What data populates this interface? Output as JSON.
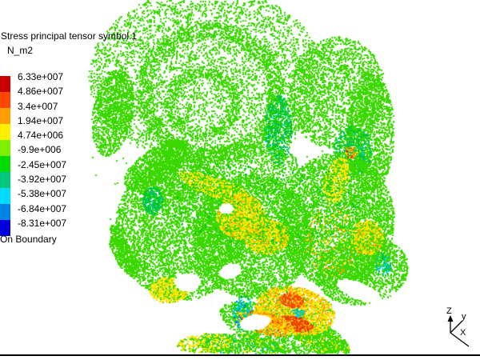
{
  "legend": {
    "title": "Stress principal tensor symbol.1",
    "unit": "N_m2",
    "values": [
      "6.33e+007",
      "4.86e+007",
      "3.4e+007",
      "1.94e+007",
      "4.74e+006",
      "-9.9e+006",
      "-2.45e+007",
      "-3.92e+007",
      "-5.38e+007",
      "-6.84e+007",
      "-8.31e+007"
    ],
    "swatch_colors": [
      "#C80000",
      "#FF4600",
      "#FF9E00",
      "#FFF000",
      "#7DF000",
      "#00DC00",
      "#00C87D",
      "#00DCFF",
      "#0082E6",
      "#0000DC"
    ],
    "boundary_label": "On Boundary"
  },
  "axis_triad": {
    "z": "Z",
    "y": "y",
    "x": "X"
  },
  "viewport": {
    "background": "#FFFFFF",
    "bottom_line_color": "#000000"
  },
  "point_cloud": {
    "seed": 1337,
    "dot_size": 2,
    "palette": {
      "g": "#3BD800",
      "dg": "#00C61E",
      "em": "#00C375",
      "cy": "#00D2FF",
      "bl": "#0070E8",
      "ye": "#FFE400",
      "or": "#FFA000",
      "ro": "#F44800",
      "rd": "#E02800"
    },
    "holes": [
      [
        233,
        352,
        16,
        12,
        0
      ],
      [
        318,
        402,
        20,
        10,
        -10
      ],
      [
        448,
        363,
        30,
        11,
        22
      ],
      [
        286,
        338,
        14,
        9,
        -20
      ],
      [
        282,
        260,
        10,
        7,
        0
      ]
    ],
    "blobs": [
      [
        258,
        95,
        148,
        110,
        0,
        5200,
        0,
        [
          [
            "g",
            1
          ]
        ]
      ],
      [
        262,
        115,
        92,
        88,
        0,
        1700,
        0.78,
        [
          [
            "g",
            1
          ]
        ]
      ],
      [
        252,
        128,
        48,
        45,
        0,
        650,
        0.7,
        [
          [
            "g",
            1
          ]
        ]
      ],
      [
        140,
        140,
        25,
        55,
        10,
        1300,
        0,
        [
          [
            "g",
            1
          ]
        ]
      ],
      [
        195,
        205,
        48,
        20,
        -35,
        1100,
        0,
        [
          [
            "g",
            1
          ]
        ]
      ],
      [
        420,
        115,
        60,
        70,
        10,
        2200,
        0,
        [
          [
            "g",
            1
          ]
        ]
      ],
      [
        462,
        165,
        30,
        75,
        0,
        1700,
        0,
        [
          [
            "g",
            1
          ]
        ]
      ],
      [
        347,
        162,
        17,
        44,
        0,
        650,
        0,
        [
          [
            "dg",
            0.45
          ],
          [
            "em",
            0.3
          ],
          [
            "g",
            0.2
          ],
          [
            "cy",
            0.05
          ]
        ]
      ],
      [
        440,
        188,
        24,
        32,
        0,
        550,
        0,
        [
          [
            "dg",
            0.4
          ],
          [
            "em",
            0.3
          ],
          [
            "g",
            0.27
          ],
          [
            "cy",
            0.03
          ]
        ]
      ],
      [
        225,
        285,
        82,
        90,
        0,
        5600,
        0,
        [
          [
            "g",
            1
          ]
        ]
      ],
      [
        315,
        295,
        75,
        78,
        0,
        4600,
        0,
        [
          [
            "g",
            1
          ]
        ]
      ],
      [
        420,
        275,
        72,
        85,
        0,
        5200,
        0,
        [
          [
            "g",
            1
          ]
        ]
      ],
      [
        280,
        215,
        95,
        35,
        -5,
        1500,
        0,
        [
          [
            "g",
            1
          ]
        ]
      ],
      [
        155,
        320,
        12,
        30,
        -32,
        420,
        0,
        [
          [
            "g",
            1
          ]
        ]
      ],
      [
        147,
        297,
        7,
        20,
        -25,
        130,
        0,
        [
          [
            "g",
            1
          ]
        ]
      ],
      [
        452,
        338,
        58,
        42,
        -10,
        1900,
        0,
        [
          [
            "g",
            1
          ]
        ]
      ],
      [
        355,
        413,
        85,
        28,
        18,
        1900,
        0,
        [
          [
            "g",
            1
          ]
        ]
      ],
      [
        400,
        425,
        40,
        15,
        25,
        700,
        0,
        [
          [
            "g",
            0.85
          ],
          [
            "ye",
            0.15
          ]
        ]
      ],
      [
        300,
        432,
        55,
        15,
        5,
        900,
        0,
        [
          [
            "g",
            0.7
          ],
          [
            "ye",
            0.15
          ],
          [
            "em",
            0.15
          ]
        ]
      ],
      [
        268,
        233,
        48,
        12,
        19,
        520,
        0,
        [
          [
            "ye",
            0.7
          ],
          [
            "g",
            0.3
          ]
        ]
      ],
      [
        300,
        270,
        30,
        28,
        0,
        1500,
        0,
        [
          [
            "ye",
            0.6
          ],
          [
            "g",
            0.3
          ],
          [
            "or",
            0.1
          ]
        ]
      ],
      [
        332,
        295,
        28,
        22,
        0,
        1000,
        0,
        [
          [
            "ye",
            0.55
          ],
          [
            "g",
            0.35
          ],
          [
            "or",
            0.1
          ]
        ]
      ],
      [
        210,
        362,
        24,
        16,
        0,
        520,
        0,
        [
          [
            "ye",
            0.75
          ],
          [
            "g",
            0.25
          ]
        ]
      ],
      [
        420,
        224,
        15,
        30,
        18,
        400,
        0,
        [
          [
            "ye",
            0.7
          ],
          [
            "g",
            0.3
          ]
        ]
      ],
      [
        458,
        296,
        20,
        22,
        0,
        600,
        0,
        [
          [
            "ye",
            0.6
          ],
          [
            "g",
            0.3
          ],
          [
            "or",
            0.1
          ]
        ]
      ],
      [
        368,
        388,
        50,
        30,
        10,
        2200,
        0,
        [
          [
            "ye",
            0.6
          ],
          [
            "or",
            0.25
          ],
          [
            "g",
            0.15
          ]
        ]
      ],
      [
        364,
        375,
        16,
        9,
        15,
        240,
        0,
        [
          [
            "ro",
            0.7
          ],
          [
            "or",
            0.3
          ]
        ]
      ],
      [
        367,
        404,
        24,
        9,
        10,
        360,
        0,
        [
          [
            "ro",
            0.55
          ],
          [
            "rd",
            0.25
          ],
          [
            "or",
            0.2
          ]
        ]
      ],
      [
        330,
        403,
        38,
        14,
        15,
        600,
        0,
        [
          [
            "or",
            0.55
          ],
          [
            "ye",
            0.35
          ],
          [
            "ro",
            0.1
          ]
        ]
      ],
      [
        190,
        250,
        13,
        17,
        0,
        260,
        0,
        [
          [
            "em",
            0.55
          ],
          [
            "dg",
            0.45
          ]
        ]
      ],
      [
        478,
        330,
        10,
        14,
        0,
        80,
        0,
        [
          [
            "em",
            0.5
          ],
          [
            "cy",
            0.3
          ],
          [
            "dg",
            0.2
          ]
        ]
      ],
      [
        303,
        390,
        12,
        22,
        0,
        170,
        0,
        [
          [
            "cy",
            0.35
          ],
          [
            "em",
            0.35
          ],
          [
            "bl",
            0.15
          ],
          [
            "dg",
            0.15
          ]
        ]
      ],
      [
        372,
        390,
        8,
        5,
        0,
        45,
        0,
        [
          [
            "cy",
            0.6
          ],
          [
            "em",
            0.4
          ]
        ]
      ],
      [
        255,
        428,
        35,
        12,
        -5,
        300,
        0,
        [
          [
            "ye",
            0.55
          ],
          [
            "g",
            0.45
          ]
        ]
      ],
      [
        415,
        300,
        35,
        45,
        0,
        160,
        0,
        [
          [
            "or",
            0.45
          ],
          [
            "ye",
            0.55
          ]
        ]
      ],
      [
        330,
        250,
        120,
        60,
        0,
        260,
        0,
        [
          [
            "dg",
            1
          ]
        ]
      ],
      [
        437,
        190,
        8,
        8,
        0,
        40,
        0,
        [
          [
            "or",
            0.5
          ],
          [
            "rd",
            0.2
          ],
          [
            "ye",
            0.3
          ]
        ]
      ],
      [
        300,
        210,
        190,
        150,
        0,
        150,
        0,
        [
          [
            "g",
            1
          ]
        ]
      ]
    ]
  }
}
